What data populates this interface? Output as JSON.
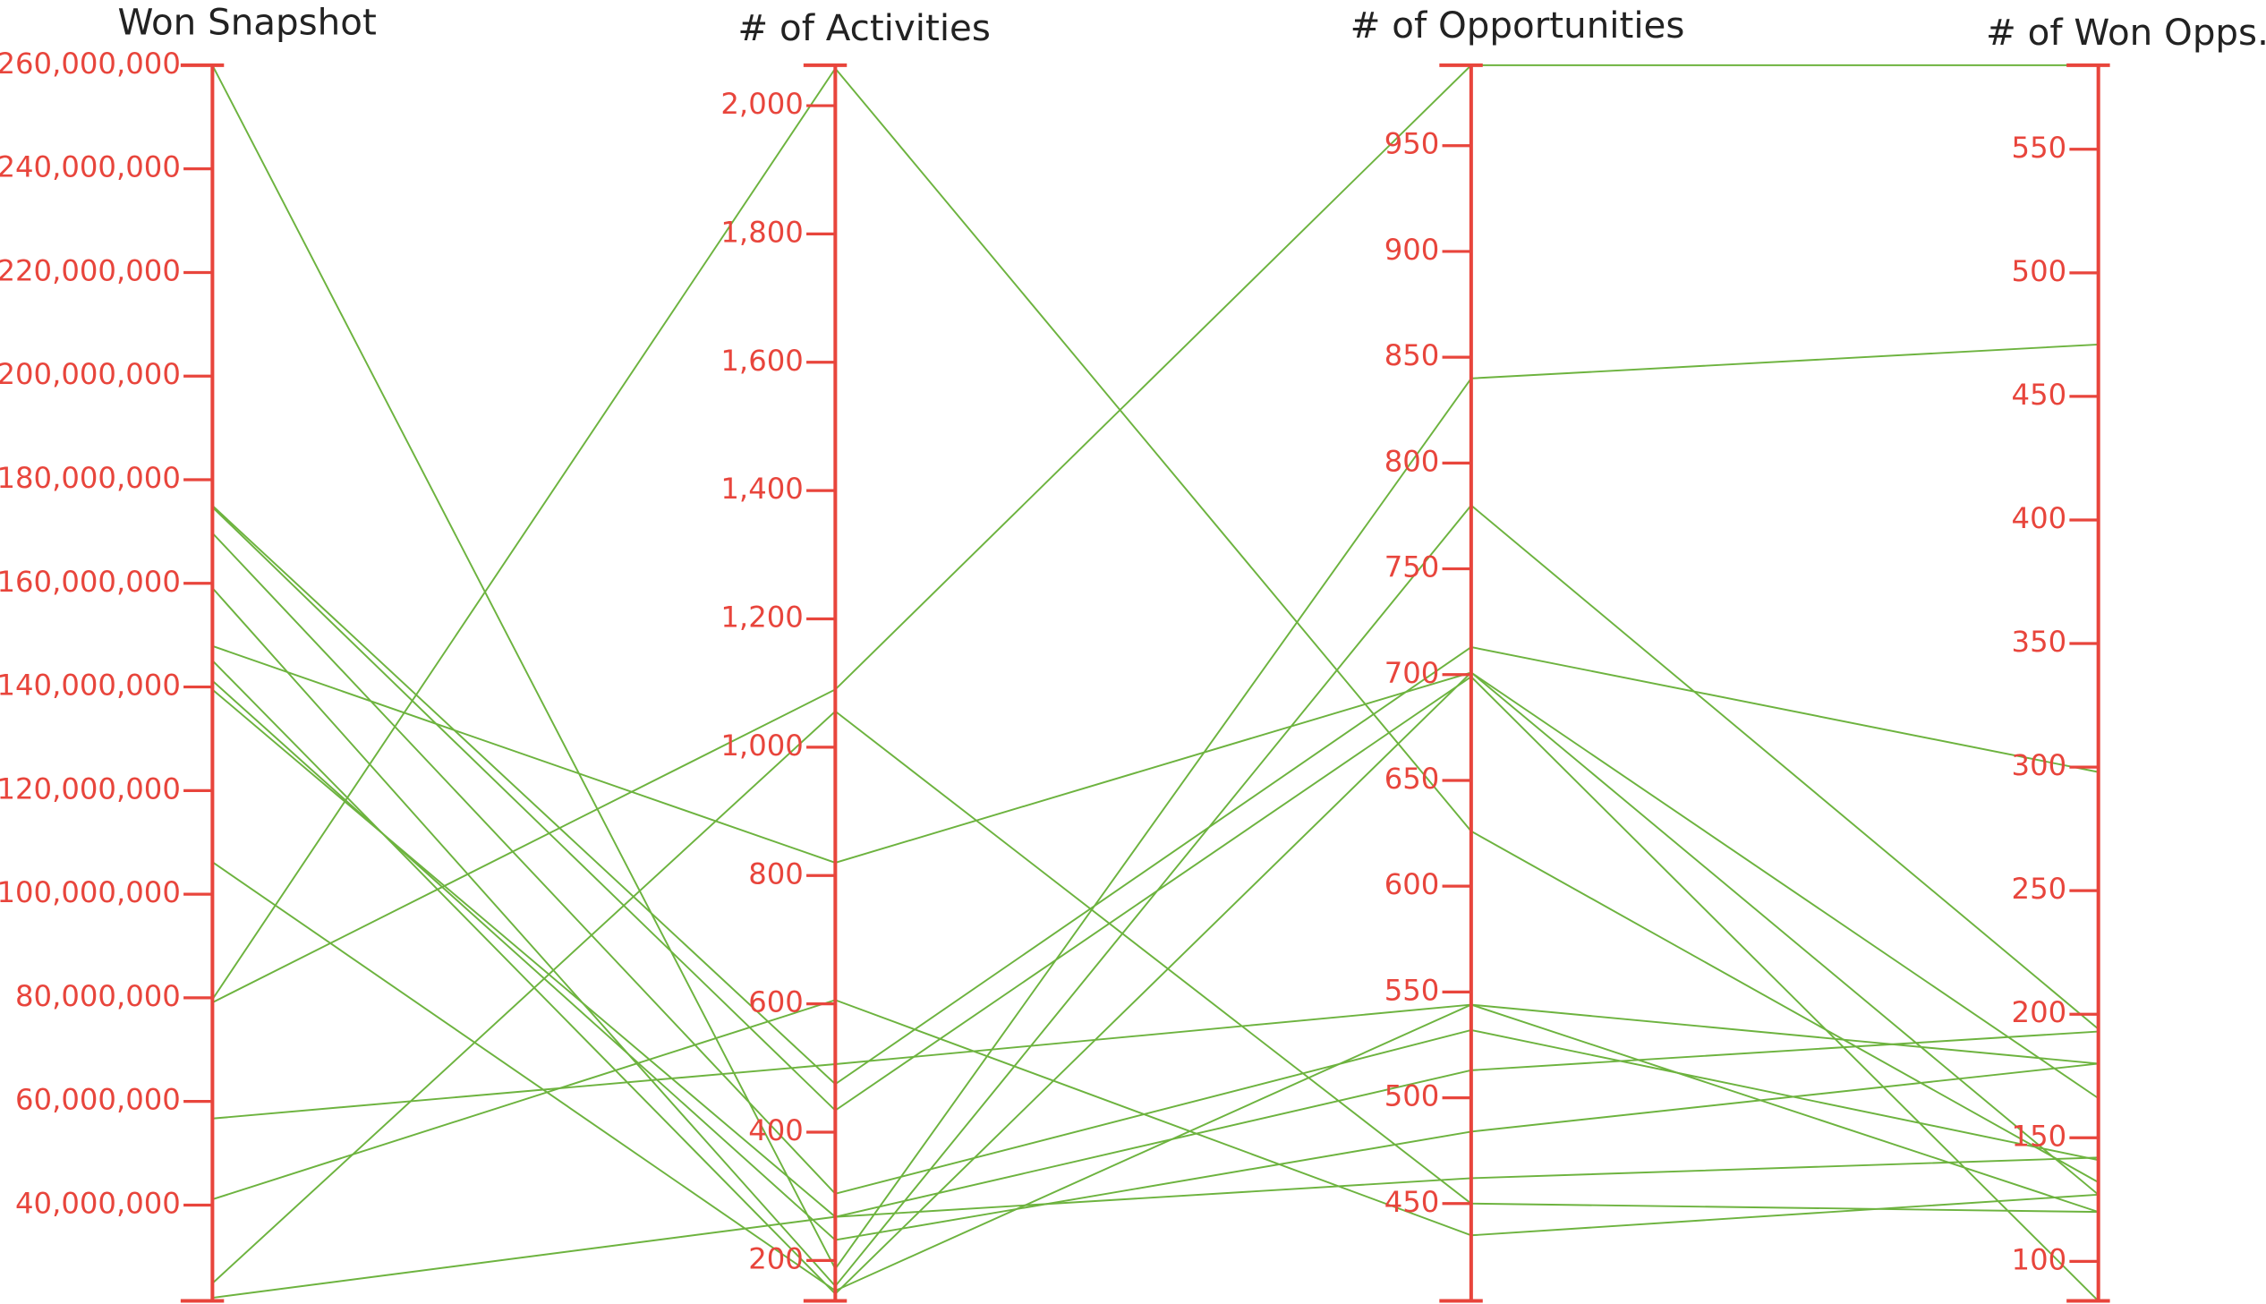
{
  "chart_data": {
    "type": "parallel",
    "axis_color": "#e8453c",
    "line_color": "#6db33f",
    "axes": [
      {
        "label": "Won Snapshot",
        "ylim": [
          21500000,
          260000000
        ],
        "yticks": [
          {
            "value": 40000000,
            "label": "40,000,000"
          },
          {
            "value": 60000000,
            "label": "60,000,000"
          },
          {
            "value": 80000000,
            "label": "80,000,000"
          },
          {
            "value": 100000000,
            "label": "100,000,000"
          },
          {
            "value": 120000000,
            "label": "120,000,000"
          },
          {
            "value": 140000000,
            "label": "140,000,000"
          },
          {
            "value": 160000000,
            "label": "160,000,000"
          },
          {
            "value": 180000000,
            "label": "180,000,000"
          },
          {
            "value": 200000000,
            "label": "200,000,000"
          },
          {
            "value": 220000000,
            "label": "220,000,000"
          },
          {
            "value": 240000000,
            "label": "240,000,000"
          },
          {
            "value": 260000000,
            "label": "260,000,000"
          }
        ]
      },
      {
        "label": "# of Activities",
        "ylim": [
          137,
          2063
        ],
        "yticks": [
          200,
          400,
          600,
          800,
          {
            "value": 1000,
            "label": "1,000"
          },
          {
            "value": 1200,
            "label": "1,200"
          },
          {
            "value": 1400,
            "label": "1,400"
          },
          {
            "value": 1600,
            "label": "1,600"
          },
          {
            "value": 1800,
            "label": "1,800"
          },
          {
            "value": 2000,
            "label": "2,000"
          }
        ]
      },
      {
        "label": "# of Opportunities",
        "ylim": [
          404,
          988
        ],
        "yticks": [
          450,
          500,
          550,
          600,
          650,
          700,
          750,
          800,
          850,
          900,
          950
        ]
      },
      {
        "label": "# of Won Opps.",
        "ylim": [
          84,
          584
        ],
        "yticks": [
          100,
          150,
          200,
          250,
          300,
          350,
          400,
          450,
          500,
          550
        ]
      }
    ],
    "series": [
      {
        "values": [
          260000000,
          187,
          840,
          471
        ]
      },
      {
        "values": [
          79700000,
          2058,
          626,
          132
        ]
      },
      {
        "values": [
          79100000,
          1090,
          988,
          584
        ]
      },
      {
        "values": [
          174700000,
          434,
          699,
          84
        ]
      },
      {
        "values": [
          175000000,
          475,
          713,
          298
        ]
      },
      {
        "values": [
          169700000,
          304,
          532,
          141
        ]
      },
      {
        "values": [
          159100000,
          160,
          780,
          194
        ]
      },
      {
        "values": [
          147900000,
          820,
          701,
          166
        ]
      },
      {
        "values": [
          145100000,
          148,
          701,
          127
        ]
      },
      {
        "values": [
          141200000,
          232,
          484,
          180
        ]
      },
      {
        "values": [
          139500000,
          268,
          513,
          193
        ]
      },
      {
        "values": [
          106200000,
          153,
          544,
          180
        ]
      },
      {
        "values": [
          56700000,
          506,
          544,
          120
        ]
      },
      {
        "values": [
          41100000,
          606,
          435,
          127
        ]
      },
      {
        "values": [
          24900000,
          1056,
          450,
          120
        ]
      },
      {
        "values": [
          22100000,
          268,
          462,
          142
        ]
      }
    ]
  }
}
